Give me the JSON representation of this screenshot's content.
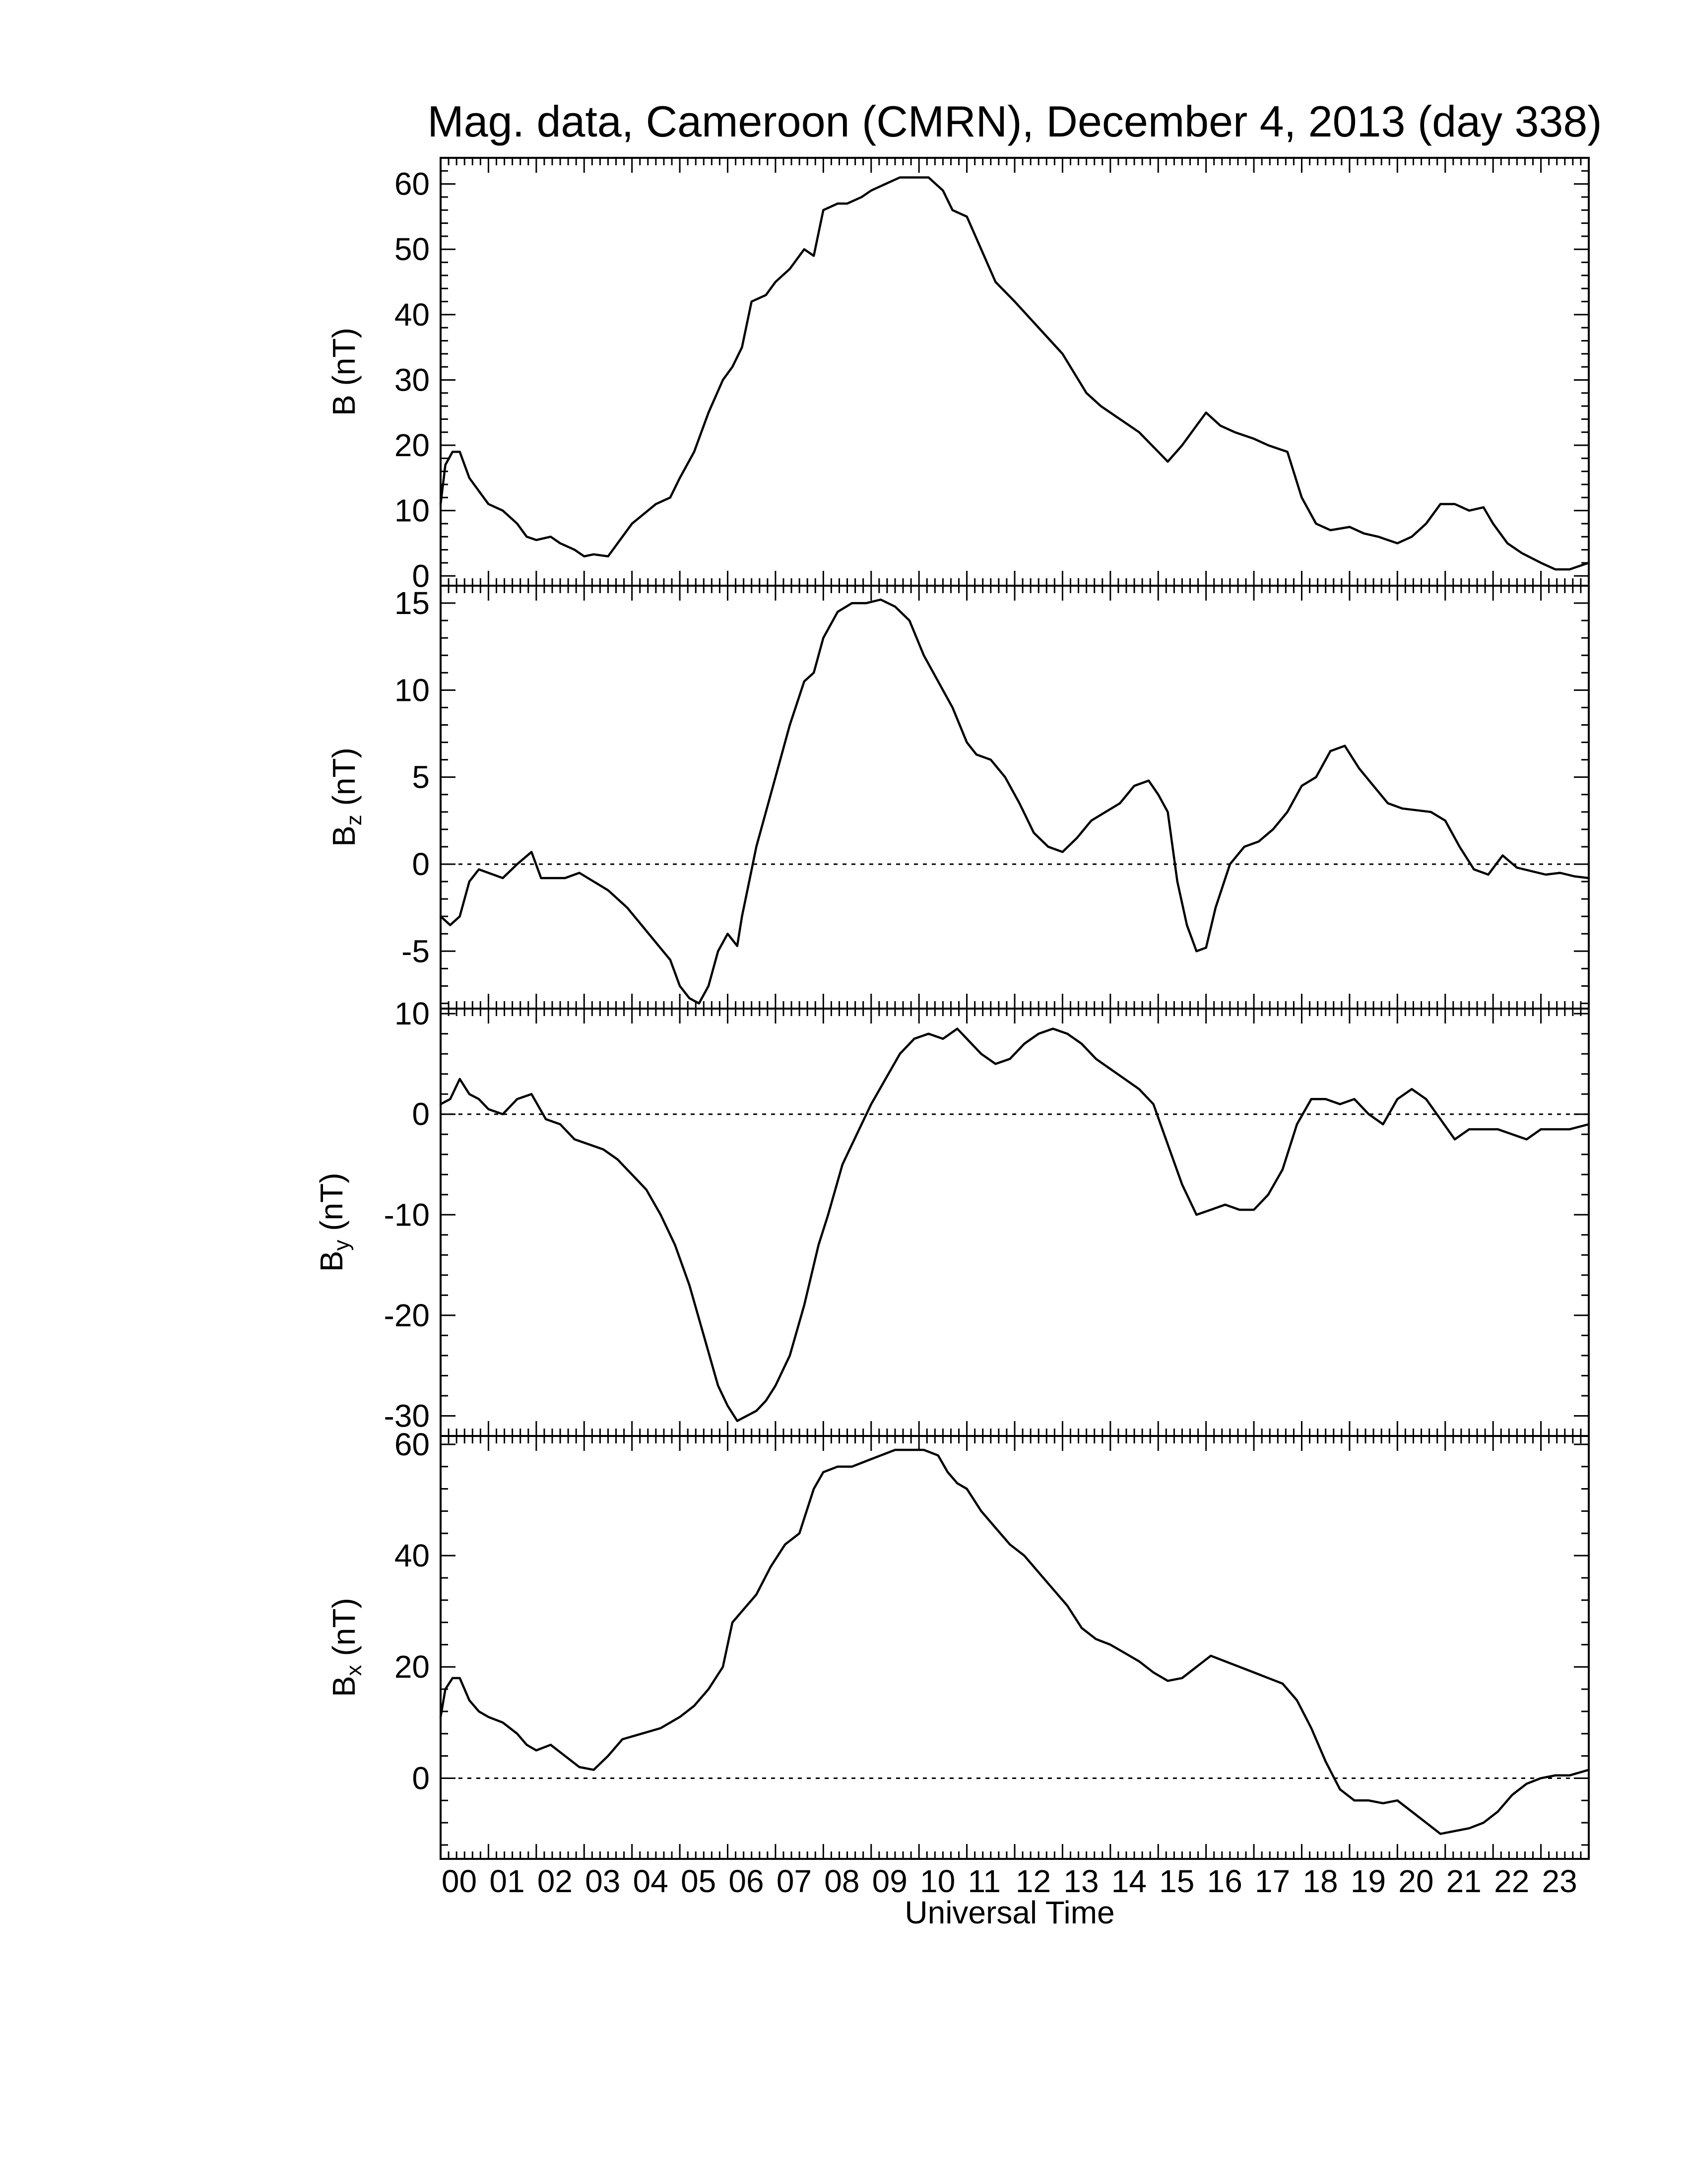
{
  "figure": {
    "title": "Mag. data, Cameroon (CMRN), December 4, 2013 (day 338)",
    "xlabel": "Universal Time"
  },
  "chart_data": [
    {
      "type": "line",
      "ylabel": "B (nT)",
      "ylabel_main": "B",
      "ylabel_sub": "",
      "ylabel_rest": " (nT)",
      "xlim": [
        0,
        24
      ],
      "ylim": [
        -1.5,
        64
      ],
      "yticks": [
        0,
        10,
        20,
        30,
        40,
        50,
        60
      ],
      "zero_line": false,
      "x": [
        0,
        0.1,
        0.25,
        0.4,
        0.6,
        0.8,
        1.0,
        1.3,
        1.6,
        1.8,
        2.0,
        2.3,
        2.5,
        2.8,
        3.0,
        3.2,
        3.5,
        4.0,
        4.5,
        4.8,
        5.0,
        5.3,
        5.6,
        5.9,
        6.1,
        6.3,
        6.5,
        6.8,
        7.0,
        7.3,
        7.6,
        7.8,
        8.0,
        8.3,
        8.5,
        8.8,
        9.0,
        9.3,
        9.6,
        9.9,
        10.2,
        10.5,
        10.7,
        11.0,
        11.3,
        11.6,
        12.0,
        12.5,
        13.0,
        13.5,
        13.8,
        14.2,
        14.6,
        14.8,
        15.0,
        15.2,
        15.5,
        15.8,
        16.0,
        16.3,
        16.6,
        17.0,
        17.3,
        17.7,
        18.0,
        18.3,
        18.6,
        19.0,
        19.3,
        19.6,
        20.0,
        20.3,
        20.6,
        20.9,
        21.2,
        21.5,
        21.8,
        22.0,
        22.3,
        22.6,
        23.0,
        23.3,
        23.6,
        24.0
      ],
      "values": [
        11,
        17,
        19,
        19,
        15,
        13,
        11,
        10,
        8,
        6,
        5.5,
        6,
        5,
        4,
        3,
        3.3,
        3,
        8,
        11,
        12,
        15,
        19,
        25,
        30,
        32,
        35,
        42,
        43,
        45,
        47,
        50,
        49,
        56,
        57,
        57,
        58,
        59,
        60,
        61,
        61,
        61,
        59,
        56,
        55,
        50,
        45,
        42,
        38,
        34,
        28,
        26,
        24,
        22,
        20.5,
        19,
        17.5,
        20,
        23,
        25,
        23,
        22,
        21,
        20,
        19,
        12,
        8,
        7,
        7.5,
        6.5,
        6,
        5,
        6,
        8,
        11,
        11,
        10,
        10.5,
        8,
        5,
        3.5,
        2,
        1,
        1,
        2
      ]
    },
    {
      "type": "line",
      "ylabel": "Bz (nT)",
      "ylabel_main": "B",
      "ylabel_sub": "z",
      "ylabel_rest": " (nT)",
      "xlim": [
        0,
        24
      ],
      "ylim": [
        -8.3,
        16
      ],
      "yticks": [
        -5,
        0,
        5,
        10,
        15
      ],
      "zero_line": true,
      "x": [
        0,
        0.2,
        0.4,
        0.6,
        0.8,
        1.0,
        1.3,
        1.6,
        1.9,
        2.1,
        2.3,
        2.6,
        2.9,
        3.2,
        3.5,
        3.9,
        4.2,
        4.5,
        4.8,
        5.0,
        5.2,
        5.4,
        5.6,
        5.8,
        6.0,
        6.2,
        6.3,
        6.45,
        6.6,
        6.8,
        7.0,
        7.3,
        7.6,
        7.8,
        8.0,
        8.3,
        8.6,
        8.9,
        9.2,
        9.5,
        9.8,
        10.1,
        10.4,
        10.7,
        11.0,
        11.2,
        11.5,
        11.8,
        12.1,
        12.4,
        12.7,
        13.0,
        13.3,
        13.6,
        13.9,
        14.2,
        14.5,
        14.8,
        15.0,
        15.2,
        15.4,
        15.6,
        15.8,
        16.0,
        16.2,
        16.5,
        16.8,
        17.1,
        17.4,
        17.7,
        18.0,
        18.3,
        18.6,
        18.9,
        19.2,
        19.5,
        19.8,
        20.1,
        20.4,
        20.7,
        21.0,
        21.3,
        21.6,
        21.9,
        22.2,
        22.5,
        22.8,
        23.1,
        23.4,
        23.7,
        24.0
      ],
      "values": [
        -3,
        -3.5,
        -3,
        -1,
        -0.3,
        -0.5,
        -0.8,
        0,
        0.7,
        -0.8,
        -0.8,
        -0.8,
        -0.5,
        -1,
        -1.5,
        -2.5,
        -3.5,
        -4.5,
        -5.5,
        -7,
        -7.7,
        -8,
        -7,
        -5,
        -4,
        -4.7,
        -3,
        -1,
        1,
        3,
        5,
        8,
        10.5,
        11,
        13,
        14.5,
        15,
        15,
        15.2,
        14.8,
        14,
        12,
        10.5,
        9,
        7,
        6.3,
        6,
        5,
        3.5,
        1.8,
        1,
        0.7,
        1.5,
        2.5,
        3,
        3.5,
        4.5,
        4.8,
        4,
        3,
        -1,
        -3.5,
        -5,
        -4.8,
        -2.5,
        0,
        1,
        1.3,
        2,
        3,
        4.5,
        5,
        6.5,
        6.8,
        5.5,
        4.5,
        3.5,
        3.2,
        3.1,
        3,
        2.5,
        1,
        -0.3,
        -0.6,
        0.5,
        -0.2,
        -0.4,
        -0.6,
        -0.5,
        -0.7,
        -0.8
      ]
    },
    {
      "type": "line",
      "ylabel": "By (nT)",
      "ylabel_main": "B",
      "ylabel_sub": "y",
      "ylabel_rest": " (nT)",
      "xlim": [
        0,
        24
      ],
      "ylim": [
        -32,
        10.5
      ],
      "yticks": [
        -30,
        -20,
        -10,
        0,
        10
      ],
      "zero_line": true,
      "x": [
        0,
        0.2,
        0.4,
        0.6,
        0.8,
        1.0,
        1.3,
        1.6,
        1.9,
        2.2,
        2.5,
        2.8,
        3.1,
        3.4,
        3.7,
        4.0,
        4.3,
        4.6,
        4.9,
        5.2,
        5.5,
        5.8,
        6.0,
        6.2,
        6.4,
        6.6,
        6.8,
        7.0,
        7.3,
        7.6,
        7.9,
        8.1,
        8.4,
        8.7,
        9.0,
        9.3,
        9.6,
        9.9,
        10.2,
        10.5,
        10.8,
        11.0,
        11.3,
        11.6,
        11.9,
        12.2,
        12.5,
        12.8,
        13.1,
        13.4,
        13.7,
        14.0,
        14.3,
        14.6,
        14.9,
        15.2,
        15.5,
        15.8,
        16.1,
        16.4,
        16.7,
        17.0,
        17.3,
        17.6,
        17.9,
        18.2,
        18.5,
        18.8,
        19.1,
        19.4,
        19.7,
        20.0,
        20.3,
        20.6,
        20.9,
        21.2,
        21.5,
        21.8,
        22.1,
        22.4,
        22.7,
        23.0,
        23.3,
        23.6,
        24.0
      ],
      "values": [
        1,
        1.5,
        3.5,
        2,
        1.5,
        0.5,
        0,
        1.5,
        2,
        -0.5,
        -1,
        -2.5,
        -3,
        -3.5,
        -4.5,
        -6,
        -7.5,
        -10,
        -13,
        -17,
        -22,
        -27,
        -29,
        -30.5,
        -30,
        -29.5,
        -28.5,
        -27,
        -24,
        -19,
        -13,
        -10,
        -5,
        -2,
        1,
        3.5,
        6,
        7.5,
        8,
        7.5,
        8.5,
        7.5,
        6,
        5,
        5.5,
        7,
        8,
        8.5,
        8,
        7,
        5.5,
        4.5,
        3.5,
        2.5,
        1,
        -3,
        -7,
        -10,
        -9.5,
        -9,
        -9.5,
        -9.5,
        -8,
        -5.5,
        -1,
        1.5,
        1.5,
        1,
        1.5,
        0,
        -1,
        1.5,
        2.5,
        1.5,
        -0.5,
        -2.5,
        -1.5,
        -1.5,
        -1.5,
        -2,
        -2.5,
        -1.5,
        -1.5,
        -1.5,
        -1
      ]
    },
    {
      "type": "line",
      "ylabel": "Bx (nT)",
      "ylabel_main": "B",
      "ylabel_sub": "x",
      "ylabel_rest": " (nT)",
      "xlim": [
        0,
        24
      ],
      "ylim": [
        -14.5,
        61.5
      ],
      "yticks": [
        0,
        20,
        40,
        60
      ],
      "zero_line": true,
      "x": [
        0,
        0.1,
        0.25,
        0.4,
        0.6,
        0.8,
        1.0,
        1.3,
        1.6,
        1.8,
        2.0,
        2.3,
        2.6,
        2.9,
        3.2,
        3.5,
        3.8,
        4.2,
        4.6,
        5.0,
        5.3,
        5.6,
        5.9,
        6.1,
        6.3,
        6.6,
        6.9,
        7.2,
        7.5,
        7.8,
        8.0,
        8.3,
        8.6,
        8.9,
        9.2,
        9.5,
        9.8,
        10.1,
        10.4,
        10.6,
        10.8,
        11.0,
        11.3,
        11.6,
        11.9,
        12.2,
        12.5,
        12.8,
        13.1,
        13.4,
        13.7,
        14.0,
        14.3,
        14.6,
        14.9,
        15.2,
        15.5,
        15.8,
        16.1,
        16.4,
        16.7,
        17.0,
        17.3,
        17.6,
        17.9,
        18.2,
        18.5,
        18.8,
        19.1,
        19.4,
        19.7,
        20.0,
        20.3,
        20.6,
        20.9,
        21.2,
        21.5,
        21.8,
        22.1,
        22.4,
        22.7,
        23.0,
        23.3,
        23.6,
        24.0
      ],
      "values": [
        11,
        16,
        18,
        18,
        14,
        12,
        11,
        10,
        8,
        6,
        5,
        6,
        4,
        2,
        1.5,
        4,
        7,
        8,
        9,
        11,
        13,
        16,
        20,
        28,
        30,
        33,
        38,
        42,
        44,
        52,
        55,
        56,
        56,
        57,
        58,
        59,
        59,
        59,
        58,
        55,
        53,
        52,
        48,
        45,
        42,
        40,
        37,
        34,
        31,
        27,
        25,
        24,
        22.5,
        21,
        19,
        17.5,
        18,
        20,
        22,
        21,
        20,
        19,
        18,
        17,
        14,
        9,
        3,
        -2,
        -4,
        -4,
        -4.5,
        -4,
        -6,
        -8,
        -10,
        -9.5,
        -9,
        -8,
        -6,
        -3,
        -1,
        0,
        0.5,
        0.5,
        1.5
      ]
    }
  ],
  "x_axis": {
    "ticks": [
      "00",
      "01",
      "02",
      "03",
      "04",
      "05",
      "06",
      "07",
      "08",
      "09",
      "10",
      "11",
      "12",
      "13",
      "14",
      "15",
      "16",
      "17",
      "18",
      "19",
      "20",
      "21",
      "22",
      "23"
    ]
  }
}
